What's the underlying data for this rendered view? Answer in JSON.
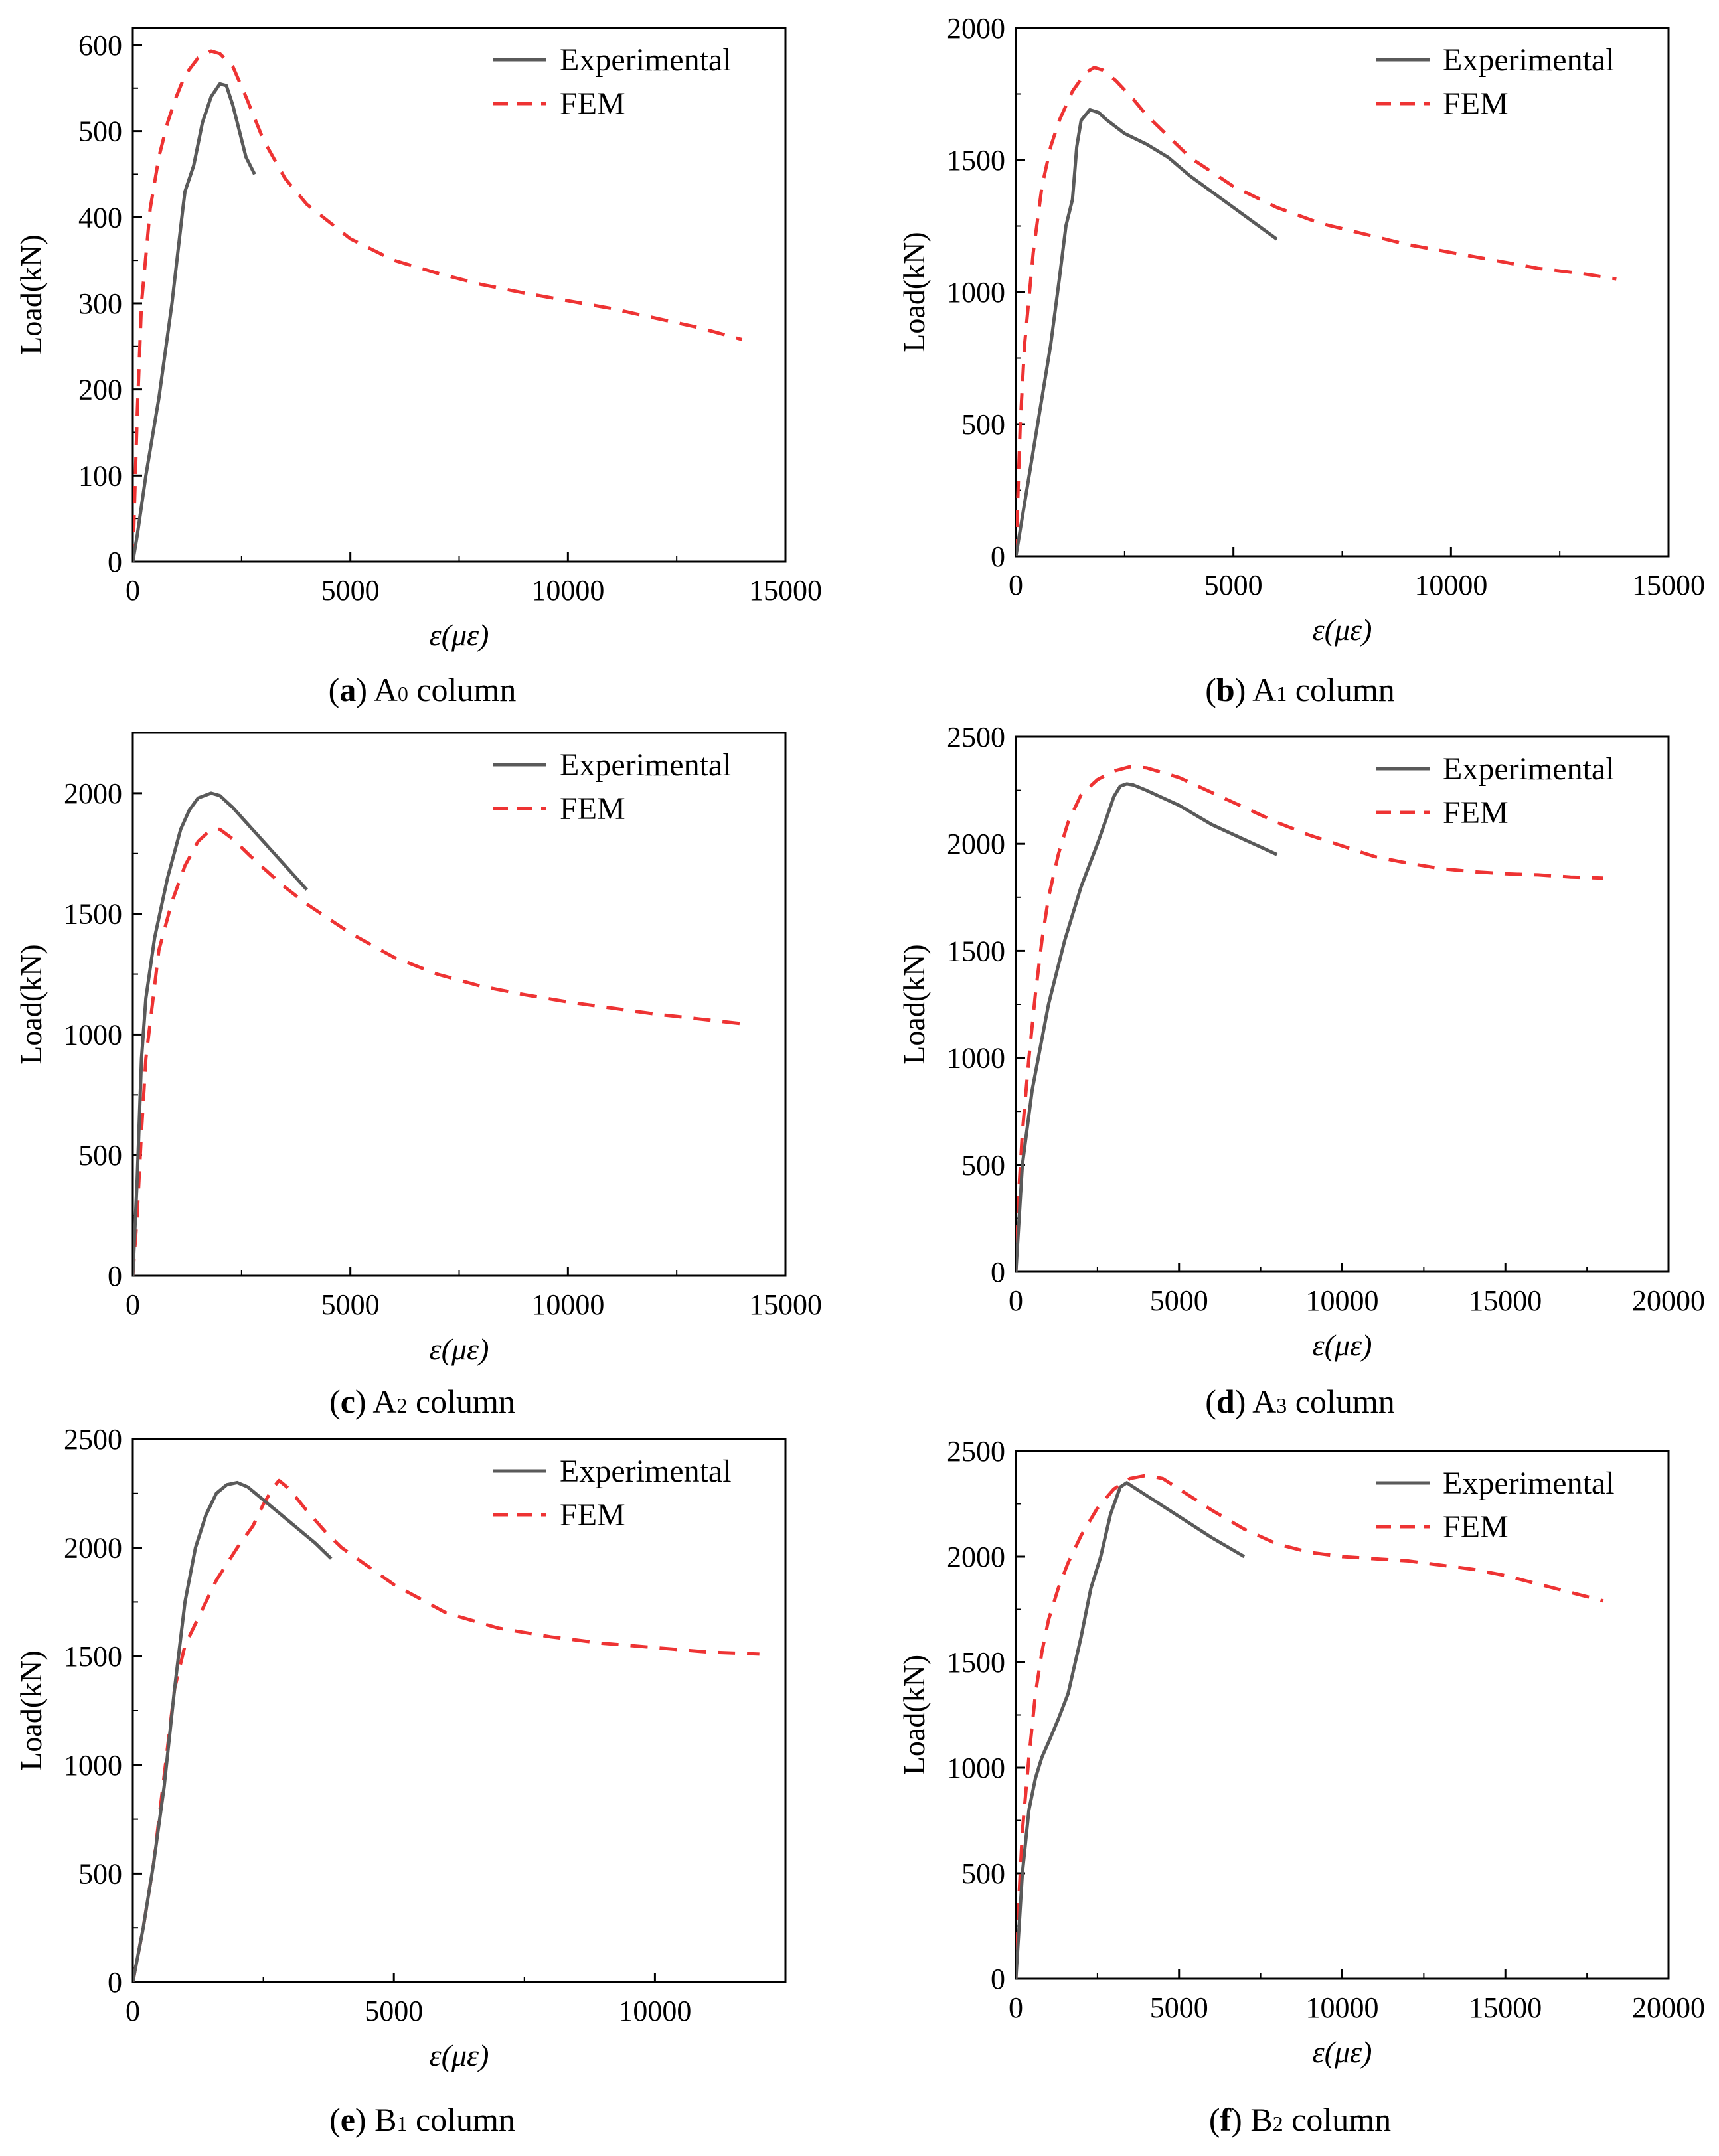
{
  "figure": {
    "legend_experimental": "Experimental",
    "legend_fem": "FEM",
    "colors": {
      "experimental": "#5a5a5a",
      "fem": "#ee3333"
    }
  },
  "chart_data": [
    {
      "type": "line",
      "panel": "a",
      "caption": {
        "letter": "a",
        "base": "A",
        "sub": "0",
        "rest": " column"
      },
      "xlabel": "ε(με)",
      "ylabel": "Load(kN)",
      "xlim": [
        0,
        15000
      ],
      "ylim": [
        0,
        620
      ],
      "xticks": [
        0,
        5000,
        10000,
        15000
      ],
      "yticks": [
        0,
        100,
        200,
        300,
        400,
        500,
        600
      ],
      "legend": "top-right",
      "grid": false,
      "series": [
        {
          "name": "Experimental",
          "style": "solid",
          "x": [
            0,
            100,
            300,
            600,
            900,
            1150,
            1200,
            1400,
            1600,
            1800,
            2000,
            2150,
            2300,
            2450,
            2600,
            2800
          ],
          "y": [
            0,
            30,
            100,
            190,
            300,
            410,
            430,
            460,
            510,
            540,
            555,
            553,
            530,
            500,
            470,
            450
          ]
        },
        {
          "name": "FEM",
          "style": "dashed",
          "x": [
            0,
            100,
            200,
            400,
            600,
            800,
            1000,
            1200,
            1500,
            1800,
            2000,
            2300,
            2600,
            3000,
            3500,
            4000,
            5000,
            6000,
            7000,
            8000,
            9000,
            10000,
            11000,
            12000,
            13000,
            14000
          ],
          "y": [
            0,
            170,
            300,
            410,
            470,
            510,
            540,
            565,
            585,
            593,
            590,
            575,
            540,
            490,
            445,
            415,
            375,
            350,
            335,
            322,
            312,
            303,
            294,
            283,
            272,
            258
          ]
        }
      ]
    },
    {
      "type": "line",
      "panel": "b",
      "caption": {
        "letter": "b",
        "base": "A",
        "sub": "1",
        "rest": " column"
      },
      "xlabel": "ε(με)",
      "ylabel": "Load(kN)",
      "xlim": [
        0,
        15000
      ],
      "ylim": [
        0,
        2000
      ],
      "xticks": [
        0,
        5000,
        10000,
        15000
      ],
      "yticks": [
        0,
        500,
        1000,
        1500,
        2000
      ],
      "legend": "top-right",
      "grid": false,
      "series": [
        {
          "name": "Experimental",
          "style": "solid",
          "x": [
            0,
            200,
            500,
            800,
            1000,
            1150,
            1300,
            1350,
            1400,
            1500,
            1700,
            1900,
            2100,
            2500,
            3000,
            3500,
            4000,
            5000,
            6000
          ],
          "y": [
            0,
            200,
            500,
            800,
            1050,
            1250,
            1350,
            1450,
            1550,
            1650,
            1690,
            1680,
            1650,
            1600,
            1560,
            1510,
            1440,
            1320,
            1200
          ]
        },
        {
          "name": "FEM",
          "style": "dashed",
          "x": [
            0,
            100,
            200,
            400,
            600,
            800,
            1000,
            1300,
            1600,
            1800,
            2000,
            2300,
            2700,
            3000,
            3500,
            4000,
            5000,
            6000,
            7000,
            8000,
            9000,
            10000,
            11000,
            12000,
            13000,
            13800
          ],
          "y": [
            0,
            500,
            800,
            1150,
            1400,
            1550,
            1650,
            1760,
            1830,
            1850,
            1840,
            1800,
            1730,
            1670,
            1590,
            1510,
            1400,
            1320,
            1260,
            1220,
            1180,
            1150,
            1120,
            1090,
            1070,
            1050
          ]
        }
      ]
    },
    {
      "type": "line",
      "panel": "c",
      "caption": {
        "letter": "c",
        "base": "A",
        "sub": "2",
        "rest": " column"
      },
      "xlabel": "ε(με)",
      "ylabel": "Load(kN)",
      "xlim": [
        0,
        15000
      ],
      "ylim": [
        0,
        2250
      ],
      "xticks": [
        0,
        5000,
        10000,
        15000
      ],
      "yticks": [
        0,
        500,
        1000,
        1500,
        2000
      ],
      "legend": "top-right",
      "grid": false,
      "series": [
        {
          "name": "Experimental",
          "style": "solid",
          "x": [
            0,
            100,
            200,
            300,
            500,
            800,
            1100,
            1300,
            1500,
            1800,
            2000,
            2300,
            2700,
            3000,
            3500,
            4000
          ],
          "y": [
            0,
            400,
            900,
            1150,
            1400,
            1650,
            1850,
            1930,
            1980,
            2000,
            1990,
            1940,
            1860,
            1800,
            1700,
            1600
          ]
        },
        {
          "name": "FEM",
          "style": "dashed",
          "x": [
            0,
            100,
            200,
            300,
            400,
            600,
            900,
            1200,
            1500,
            1800,
            2000,
            2300,
            2700,
            3000,
            3500,
            4000,
            5000,
            6000,
            7000,
            8000,
            9000,
            10000,
            11000,
            12000,
            13000,
            14000
          ],
          "y": [
            0,
            250,
            600,
            900,
            1050,
            1350,
            1550,
            1700,
            1800,
            1850,
            1850,
            1810,
            1740,
            1690,
            1610,
            1540,
            1420,
            1320,
            1250,
            1200,
            1165,
            1135,
            1110,
            1085,
            1065,
            1045
          ]
        }
      ]
    },
    {
      "type": "line",
      "panel": "d",
      "caption": {
        "letter": "d",
        "base": "A",
        "sub": "3",
        "rest": " column"
      },
      "xlabel": "ε(με)",
      "ylabel": "Load(kN)",
      "xlim": [
        0,
        20000
      ],
      "ylim": [
        0,
        2500
      ],
      "xticks": [
        0,
        5000,
        10000,
        15000,
        20000
      ],
      "yticks": [
        0,
        500,
        1000,
        1500,
        2000,
        2500
      ],
      "legend": "top-right",
      "grid": false,
      "series": [
        {
          "name": "Experimental",
          "style": "solid",
          "x": [
            0,
            200,
            500,
            1000,
            1500,
            2000,
            2500,
            2800,
            3000,
            3200,
            3400,
            3600,
            4000,
            5000,
            6000,
            7000,
            8000
          ],
          "y": [
            0,
            500,
            850,
            1250,
            1550,
            1800,
            2000,
            2130,
            2220,
            2270,
            2280,
            2275,
            2250,
            2180,
            2090,
            2020,
            1950
          ]
        },
        {
          "name": "FEM",
          "style": "dashed",
          "x": [
            0,
            100,
            200,
            400,
            600,
            800,
            1000,
            1300,
            1600,
            2000,
            2500,
            3000,
            3500,
            4000,
            5000,
            6000,
            7000,
            8000,
            9000,
            10000,
            11000,
            12000,
            13000,
            14000,
            15000,
            16000,
            17000,
            18000
          ],
          "y": [
            0,
            400,
            650,
            1000,
            1300,
            1550,
            1750,
            1950,
            2100,
            2230,
            2300,
            2340,
            2360,
            2355,
            2310,
            2240,
            2170,
            2100,
            2040,
            1990,
            1940,
            1910,
            1885,
            1870,
            1860,
            1855,
            1845,
            1840
          ]
        }
      ]
    },
    {
      "type": "line",
      "panel": "e",
      "caption": {
        "letter": "e",
        "base": "B",
        "sub": "1",
        "rest": " column"
      },
      "xlabel": "ε(με)",
      "ylabel": "Load(kN)",
      "xlim": [
        0,
        12500
      ],
      "ylim": [
        0,
        2500
      ],
      "xticks": [
        0,
        5000,
        10000
      ],
      "yticks": [
        0,
        500,
        1000,
        1500,
        2000,
        2500
      ],
      "legend": "top-right",
      "grid": false,
      "series": [
        {
          "name": "Experimental",
          "style": "solid",
          "x": [
            0,
            200,
            400,
            600,
            800,
            1000,
            1200,
            1400,
            1600,
            1800,
            2000,
            2200,
            2500,
            3000,
            3500,
            3800
          ],
          "y": [
            0,
            250,
            550,
            900,
            1350,
            1750,
            2000,
            2150,
            2250,
            2290,
            2300,
            2280,
            2220,
            2120,
            2020,
            1950
          ]
        },
        {
          "name": "FEM",
          "style": "dashed",
          "x": [
            0,
            200,
            400,
            600,
            800,
            1000,
            1300,
            1600,
            2000,
            2300,
            2500,
            2700,
            2800,
            3000,
            3300,
            3700,
            4000,
            5000,
            6000,
            7000,
            8000,
            9000,
            10000,
            11000,
            12000
          ],
          "y": [
            0,
            250,
            550,
            950,
            1350,
            1550,
            1700,
            1850,
            2000,
            2100,
            2200,
            2280,
            2310,
            2270,
            2180,
            2070,
            2000,
            1830,
            1700,
            1630,
            1590,
            1560,
            1540,
            1520,
            1510
          ]
        }
      ]
    },
    {
      "type": "line",
      "panel": "f",
      "caption": {
        "letter": "f",
        "base": "B",
        "sub": "2",
        "rest": " column"
      },
      "xlabel": "ε(με)",
      "ylabel": "Load(kN)",
      "xlim": [
        0,
        20000
      ],
      "ylim": [
        0,
        2500
      ],
      "xticks": [
        0,
        5000,
        10000,
        15000,
        20000
      ],
      "yticks": [
        0,
        500,
        1000,
        1500,
        2000,
        2500
      ],
      "legend": "top-right",
      "grid": false,
      "series": [
        {
          "name": "Experimental",
          "style": "solid",
          "x": [
            0,
            200,
            400,
            600,
            800,
            1000,
            1300,
            1600,
            2000,
            2300,
            2600,
            2900,
            3200,
            3400,
            3600,
            4000,
            5000,
            6000,
            7000
          ],
          "y": [
            0,
            500,
            800,
            950,
            1050,
            1120,
            1230,
            1350,
            1620,
            1850,
            2000,
            2200,
            2330,
            2350,
            2330,
            2290,
            2190,
            2090,
            2000
          ]
        },
        {
          "name": "FEM",
          "style": "dashed",
          "x": [
            0,
            100,
            200,
            400,
            600,
            800,
            1000,
            1300,
            1600,
            2000,
            2500,
            3000,
            3500,
            4000,
            4500,
            5000,
            6000,
            7000,
            8000,
            9000,
            10000,
            11000,
            12000,
            13000,
            14000,
            15000,
            16000,
            17000,
            18000
          ],
          "y": [
            0,
            400,
            700,
            1050,
            1350,
            1550,
            1700,
            1850,
            1970,
            2100,
            2230,
            2320,
            2370,
            2385,
            2370,
            2320,
            2220,
            2130,
            2060,
            2020,
            2000,
            1990,
            1980,
            1960,
            1940,
            1910,
            1870,
            1830,
            1790
          ]
        }
      ]
    }
  ]
}
